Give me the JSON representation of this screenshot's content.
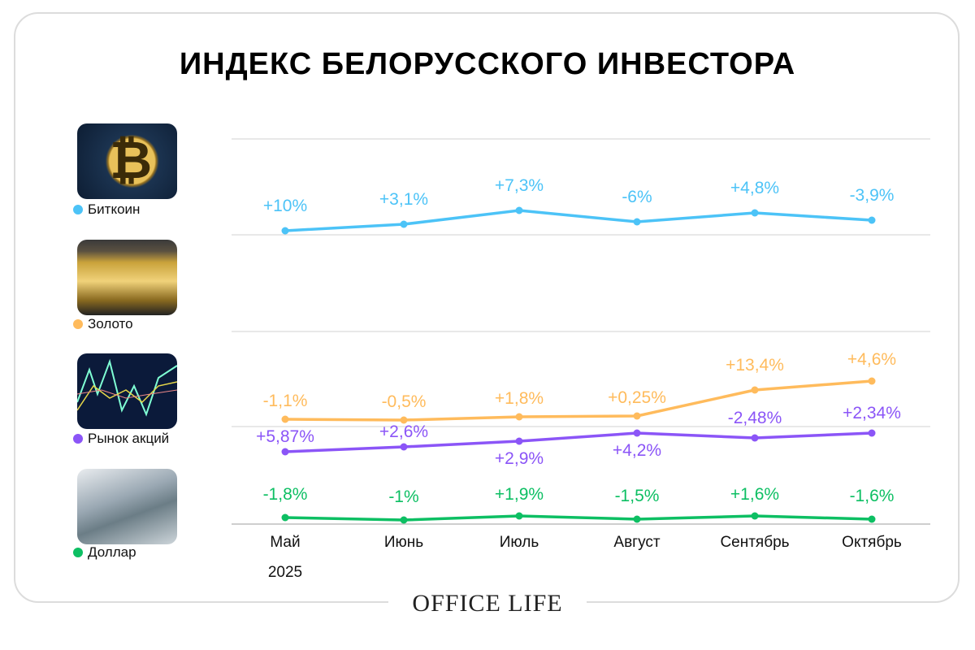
{
  "title": "ИНДЕКС БЕЛОРУССКОГО ИНВЕСТОРА",
  "logo": "OFFICE LIFE",
  "chart_data": {
    "type": "line",
    "title": "ИНДЕКС БЕЛОРУССКОГО ИНВЕСТОРА",
    "categories": [
      "Май",
      "Июнь",
      "Июль",
      "Август",
      "Сентябрь",
      "Октябрь"
    ],
    "year_label": "2025",
    "grid": true,
    "legend_placement": "left",
    "series": [
      {
        "name": "Биткоин",
        "color": "#4cc3f7",
        "labels": [
          "+10%",
          "+3,1%",
          "+7,3%",
          "-6%",
          "+4,8%",
          "-3,9%"
        ],
        "values": [
          10,
          3.1,
          7.3,
          -6,
          4.8,
          -3.9
        ],
        "image": "bitcoin-coin"
      },
      {
        "name": "Золото",
        "color": "#ffbb5c",
        "labels": [
          "-1,1%",
          "-0,5%",
          "+1,8%",
          "+0,25%",
          "+13,4%",
          "+4,6%"
        ],
        "values": [
          -1.1,
          -0.5,
          1.8,
          0.25,
          13.4,
          4.6
        ],
        "image": "gold-bars"
      },
      {
        "name": "Рынок акций",
        "color": "#8b55f7",
        "labels": [
          "+5,87%",
          "+2,6%",
          "+2,9%",
          "+4,2%",
          "-2,48%",
          "+2,34%"
        ],
        "values": [
          5.87,
          2.6,
          2.9,
          4.2,
          -2.48,
          2.34
        ],
        "image": "stock-chart"
      },
      {
        "name": "Доллар",
        "color": "#0dbf63",
        "labels": [
          "-1,8%",
          "-1%",
          "+1,9%",
          "-1,5%",
          "+1,6%",
          "-1,6%"
        ],
        "values": [
          -1.8,
          -1,
          1.9,
          -1.5,
          1.6,
          -1.6
        ],
        "image": "dollar-bills"
      }
    ]
  }
}
